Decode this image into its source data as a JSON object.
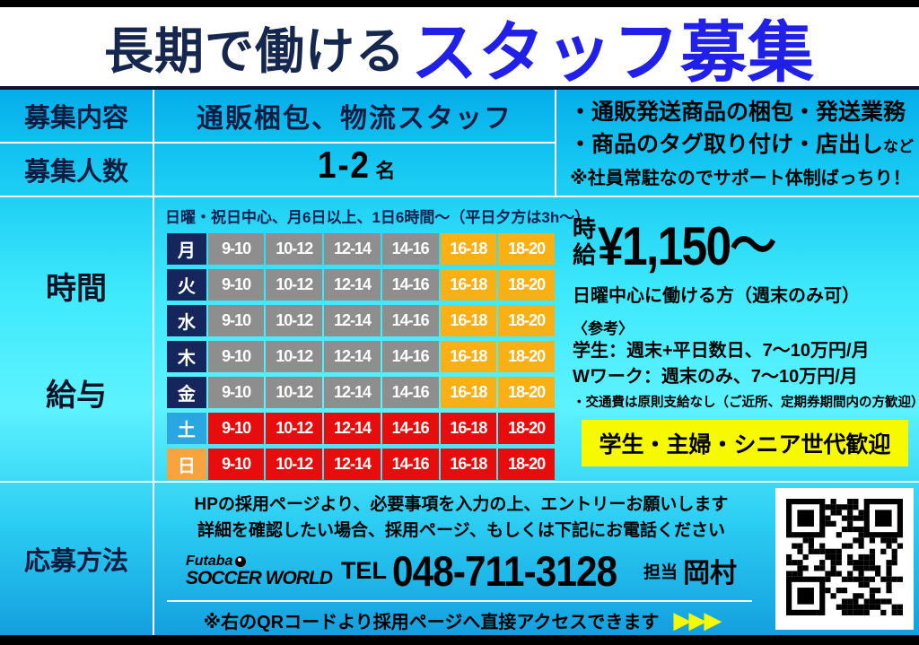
{
  "header": {
    "title_left": "長期で働ける",
    "title_right": "スタッフ募集"
  },
  "colors": {
    "title_navy": "#15274f",
    "title_blue": "#2020e8",
    "background_cyan_top": "#04aeea",
    "background_cyan_mid": "#5df2ff",
    "background_blue_bottom": "#149fdf",
    "day_navy": "#16265c",
    "saturday_blue": "#2aa7e0",
    "sunday_orange": "#f9a33f",
    "slot_gray": "#8e8e8e",
    "slot_amber": "#f9b015",
    "slot_red": "#e80d0d",
    "welcome_yellow": "#f6f900",
    "arrow_yellow": "#f6f900"
  },
  "recruit_content": {
    "label": "募集内容",
    "value": "通販梱包、物流スタッフ"
  },
  "recruit_count": {
    "label": "募集人数",
    "value_number": "1-2",
    "value_unit": "名"
  },
  "right_top": {
    "bullet1": "・通販発送商品の梱包・発送業務",
    "bullet2_main": "・商品のタグ取り付け・店出し",
    "bullet2_suffix": "など",
    "note": "※社員常駐なのでサポート体制ばっちり！"
  },
  "time_wage_label": {
    "line1": "時間",
    "line2": "給与"
  },
  "schedule": {
    "caption": "日曜・祝日中心、月6日以上、1日6時間～（平日夕方は3h～）",
    "time_slots": [
      "9-10",
      "10-12",
      "12-14",
      "14-16",
      "16-18",
      "18-20"
    ],
    "rows": [
      {
        "day": "月",
        "type": "weekday"
      },
      {
        "day": "火",
        "type": "weekday"
      },
      {
        "day": "水",
        "type": "weekday"
      },
      {
        "day": "木",
        "type": "weekday"
      },
      {
        "day": "金",
        "type": "weekday"
      },
      {
        "day": "土",
        "type": "saturday"
      },
      {
        "day": "日",
        "type": "sunday"
      }
    ]
  },
  "wage": {
    "label_vertical": [
      "時",
      "給"
    ],
    "amount": "¥1,150～",
    "condition": "日曜中心に働ける方（週末のみ可）",
    "reference_title": "〈参考〉",
    "reference_lines": [
      "学生：週末+平日数日、7～10万円/月",
      "Wワーク：週末のみ、7～10万円/月"
    ],
    "transport_note": "・交通費は原則支給なし（ご近所、定期券期間内の方歓迎）",
    "welcome_banner": "学生・主婦・シニア世代歓迎"
  },
  "apply": {
    "label": "応募方法",
    "line1": "HPの採用ページより、必要事項を入力の上、エントリーお願いします",
    "line2": "詳細を確認したい場合、採用ページ、もしくは下記にお電話ください",
    "logo_top": "Futaba",
    "logo_bottom": "SOCCER WORLD",
    "tel_label": "TEL",
    "tel_number": "048-711-3128",
    "contact_label": "担当",
    "contact_name": "岡村",
    "qr_note": "※右のQRコードより採用ページへ直接アクセスできます",
    "arrows": "▶▶▶"
  }
}
